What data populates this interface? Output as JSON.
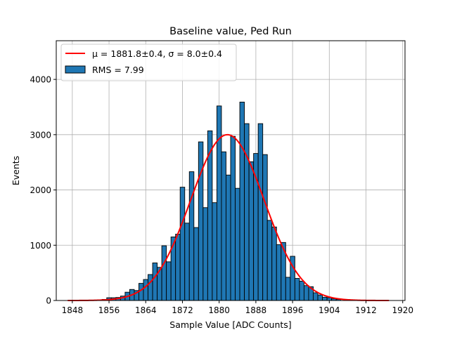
{
  "chart_data": {
    "type": "bar",
    "title": "Baseline value, Ped Run",
    "xlabel": "Sample Value [ADC Counts]",
    "ylabel": "Events",
    "xlim": [
      1844.5,
      1920.5
    ],
    "ylim": [
      0,
      4700
    ],
    "xticks": [
      1848,
      1856,
      1864,
      1872,
      1880,
      1888,
      1896,
      1904,
      1912,
      1920
    ],
    "yticks": [
      0,
      1000,
      2000,
      3000,
      4000
    ],
    "grid": true,
    "legend_position": "top-left",
    "histogram": {
      "name": "RMS = 7.99",
      "color": "#1f77b4",
      "edgecolor": "#000000",
      "bin_width": 1,
      "x": [
        1855,
        1856,
        1857,
        1858,
        1859,
        1860,
        1861,
        1862,
        1863,
        1864,
        1865,
        1866,
        1867,
        1868,
        1869,
        1870,
        1871,
        1872,
        1873,
        1874,
        1875,
        1876,
        1877,
        1878,
        1879,
        1880,
        1881,
        1882,
        1883,
        1884,
        1885,
        1886,
        1887,
        1888,
        1889,
        1890,
        1891,
        1892,
        1893,
        1894,
        1895,
        1896,
        1897,
        1898,
        1899,
        1900,
        1901,
        1902,
        1903,
        1904,
        1905,
        1906
      ],
      "values": [
        20,
        50,
        50,
        55,
        80,
        150,
        200,
        180,
        310,
        380,
        470,
        680,
        600,
        990,
        700,
        1150,
        1200,
        2050,
        1400,
        2330,
        1320,
        2870,
        1680,
        3070,
        1770,
        3520,
        2690,
        2270,
        2970,
        2030,
        3590,
        3200,
        2510,
        2660,
        3200,
        2640,
        1450,
        1330,
        1010,
        1050,
        420,
        800,
        400,
        350,
        270,
        250,
        140,
        100,
        60,
        50,
        30,
        20
      ]
    },
    "fit": {
      "name": "μ = 1881.8±0.4, σ = 8.0±0.4",
      "color": "#ff0000",
      "mu": 1881.8,
      "sigma": 8.0,
      "amplitude": 3000,
      "x_range": [
        1847,
        1917
      ]
    }
  }
}
